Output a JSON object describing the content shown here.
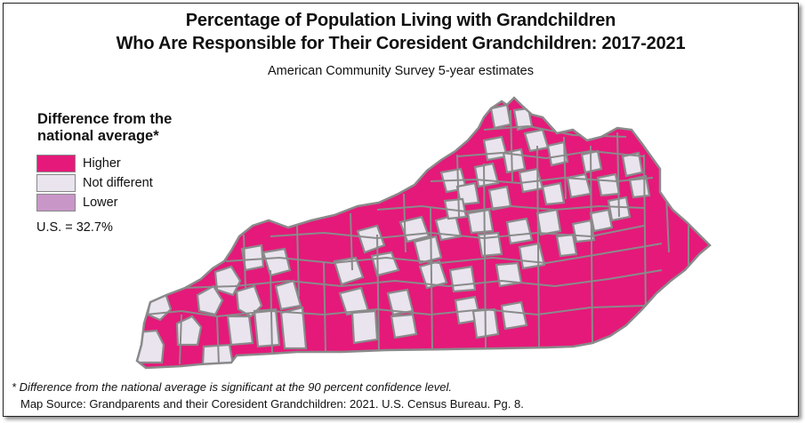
{
  "title_line1": "Percentage of Population Living with Grandchildren",
  "title_line2": "Who Are Responsible for Their Coresident Grandchildren: 2017-2021",
  "subtitle": "American Community Survey 5-year estimates",
  "legend": {
    "title": "Difference from the national average*",
    "items": [
      {
        "label": "Higher",
        "color": "#e5197a"
      },
      {
        "label": "Not different",
        "color": "#e9e4ee"
      },
      {
        "label": "Lower",
        "color": "#c996c8"
      }
    ]
  },
  "us_average": "U.S. = 32.7%",
  "footnote": "* Difference from the national average is significant at the 90 percent confidence level.",
  "source": "Map Source:  Grandparents and their Coresident Grandchildren: 2021. U.S. Census Bureau. Pg. 8.",
  "colors": {
    "higher": "#e5197a",
    "not_different": "#e9e4ee",
    "lower": "#c996c8",
    "border": "#8a8a8a"
  }
}
